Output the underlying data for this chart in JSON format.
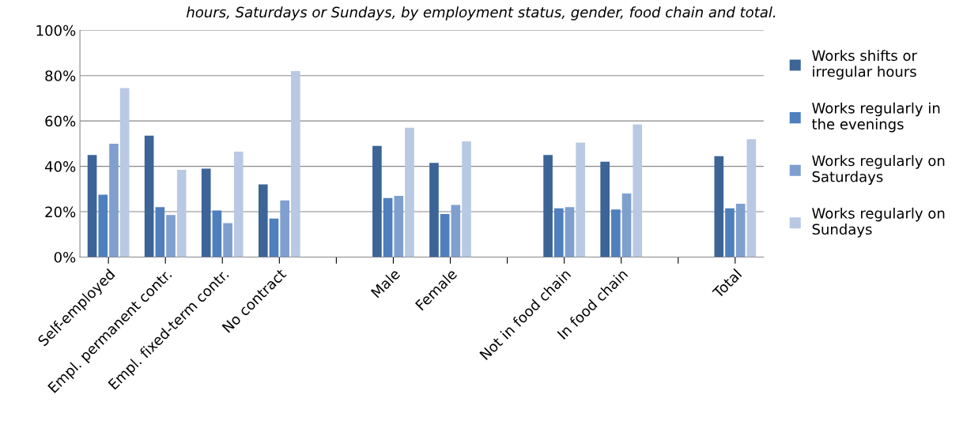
{
  "chart_data": {
    "type": "bar",
    "title": "hours, Saturdays or Sundays, by employment status, gender, food chain and total.",
    "categories": [
      "Self-employed",
      "Empl. permanent contr.",
      "Empl. fixed-term contr.",
      "No contract",
      null,
      "Male",
      "Female",
      null,
      "Not in food chain",
      "In food chain",
      null,
      "Total"
    ],
    "series": [
      {
        "name": "Works shifts or\nirregular hours",
        "color": "#3c6496",
        "values": [
          45,
          53.5,
          39,
          32,
          null,
          49,
          41.5,
          null,
          45,
          42,
          null,
          44.5
        ]
      },
      {
        "name": "Works regularly in\nthe evenings",
        "color": "#4f7fbd",
        "values": [
          27.5,
          22,
          20.5,
          17,
          null,
          26,
          19,
          null,
          21.5,
          21,
          null,
          21.5
        ]
      },
      {
        "name": "Works regularly on\nSaturdays",
        "color": "#7f9fcf",
        "values": [
          50,
          18.5,
          15,
          25,
          null,
          27,
          23,
          null,
          22,
          28,
          null,
          23.5
        ]
      },
      {
        "name": "Works regularly on\nSundays",
        "color": "#b9c9e3",
        "values": [
          74.5,
          38.5,
          46.5,
          82,
          null,
          57,
          51,
          null,
          50.5,
          58.5,
          null,
          52
        ]
      }
    ],
    "ylim": [
      0,
      100
    ],
    "yticks": [
      {
        "value": 0,
        "label": "0%"
      },
      {
        "value": 20,
        "label": "20%"
      },
      {
        "value": 40,
        "label": "40%"
      },
      {
        "value": 60,
        "label": "60%"
      },
      {
        "value": 80,
        "label": "80%"
      },
      {
        "value": 100,
        "label": "100%"
      }
    ],
    "grid": "y",
    "legend": "right"
  }
}
